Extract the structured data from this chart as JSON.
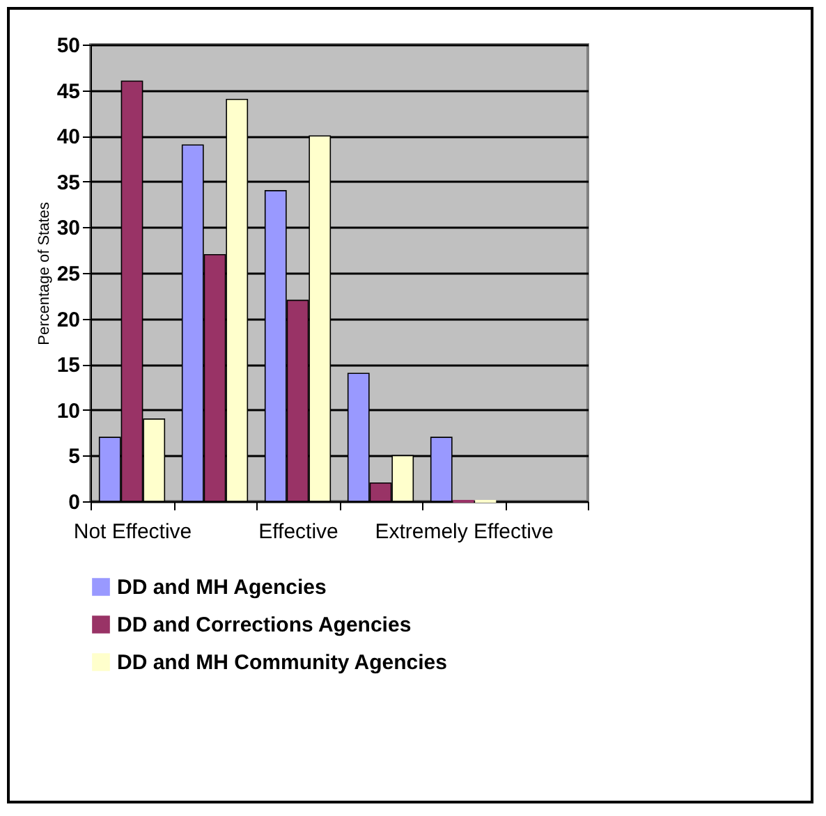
{
  "chart_data": {
    "type": "bar",
    "ylabel": "Percentage of States",
    "categories": [
      "Not Effective",
      null,
      "Effective",
      null,
      "Extremely Effective",
      null
    ],
    "series": [
      {
        "name": "DD and MH Agencies",
        "color": "#9999ff",
        "values": [
          7,
          39,
          34,
          14,
          7,
          null
        ]
      },
      {
        "name": "DD and Corrections Agencies",
        "color": "#993366",
        "values": [
          46,
          27,
          22,
          2,
          0,
          null
        ]
      },
      {
        "name": "DD and MH Community Agencies",
        "color": "#ffffcc",
        "values": [
          9,
          44,
          40,
          5,
          0,
          null
        ]
      }
    ],
    "ylim": [
      0,
      50
    ],
    "yticks": [
      0,
      5,
      10,
      15,
      20,
      25,
      30,
      35,
      40,
      45,
      50
    ],
    "grid": "y",
    "legend": "bottom"
  }
}
